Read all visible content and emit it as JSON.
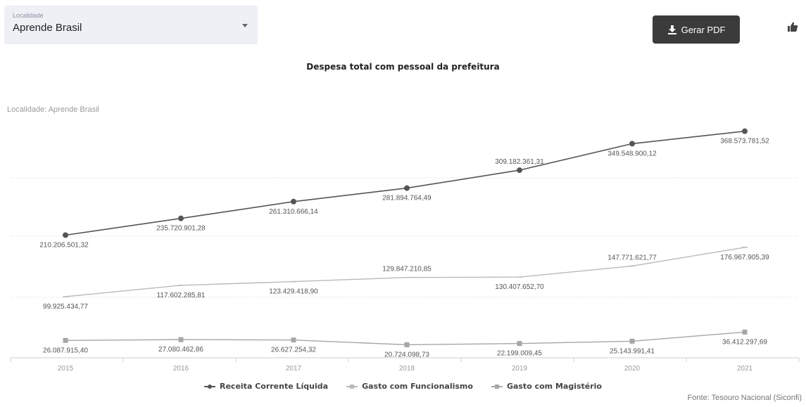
{
  "filter": {
    "label": "Localidade",
    "value": "Aprende Brasil"
  },
  "toolbar": {
    "pdf_label": "Gerar PDF",
    "pdf_icon": "download-icon",
    "like_icon": "thumbs-up-icon"
  },
  "colors": {
    "series1": "#555555",
    "series2": "#b9b9b9",
    "series3": "#a6a6a6",
    "button_bg": "#3b3b3b"
  },
  "chart_data": {
    "type": "line",
    "title": "Despesa total com pessoal da prefeitura",
    "subtitle": "Localidade: Aprende Brasil",
    "categories": [
      "2015",
      "2016",
      "2017",
      "2018",
      "2019",
      "2020",
      "2021"
    ],
    "series": [
      {
        "name": "Receita Corrente Líquida",
        "values": [
          210206501.32,
          235720901.28,
          261310666.14,
          281894764.49,
          309182361.31,
          349548900.12,
          368573781.52
        ],
        "labels": [
          "210.206.501,32",
          "235.720.901,28",
          "261.310.666,14",
          "281.894.764,49",
          "309.182.361,31",
          "349.548.900,12",
          "368.573.781,52"
        ]
      },
      {
        "name": "Gasto com Funcionalismo",
        "values": [
          99925434.77,
          117602285.81,
          123429418.9,
          129847210.85,
          130407652.7,
          147771621.77,
          176967905.39
        ],
        "labels": [
          "99.925.434,77",
          "117.602.285,81",
          "123.429.418,90",
          "129.847.210,85",
          "130.407.652,70",
          "147.771.621,77",
          "176.967.905,39"
        ]
      },
      {
        "name": "Gasto com Magistério",
        "values": [
          26087915.4,
          27080462.86,
          26627254.32,
          20724098.73,
          22199009.45,
          25143991.41,
          36412297.69
        ],
        "labels": [
          "26.087.915,40",
          "27.080.462,86",
          "26.627.254,32",
          "20.724.098,73",
          "22.199.009,45",
          "25.143.991,41",
          "36.412.297,69"
        ]
      }
    ],
    "legend_position": "bottom",
    "grid": true,
    "source": "Fonte: Tesouro Nacional (Siconfi)"
  }
}
